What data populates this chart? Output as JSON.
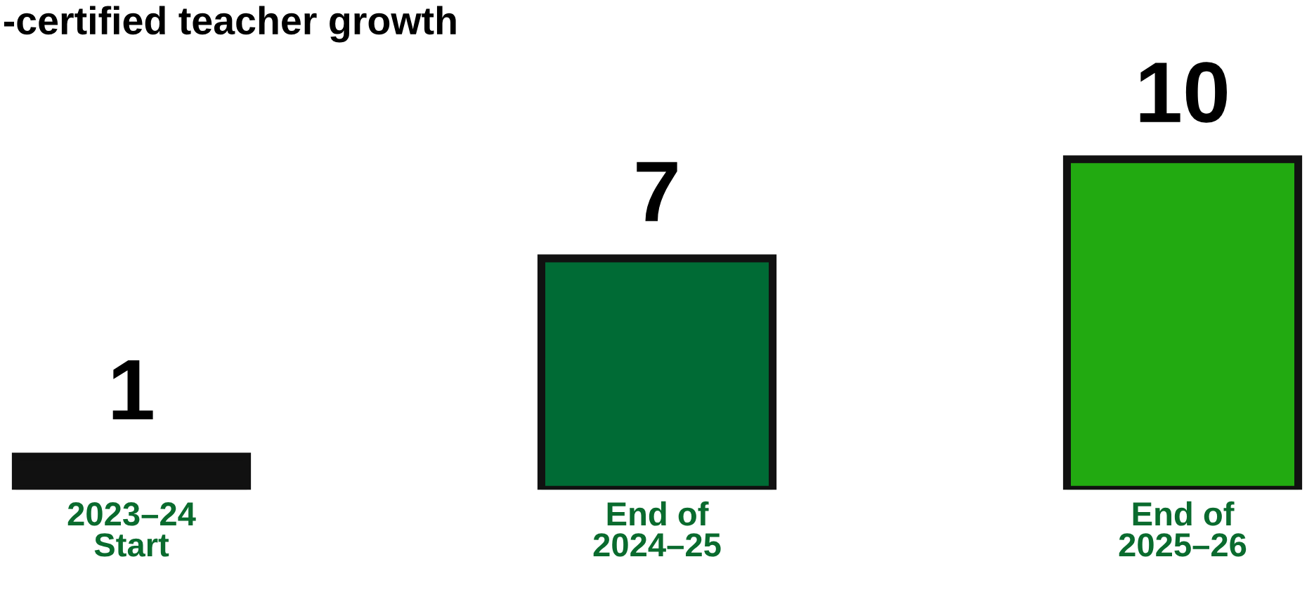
{
  "chart_data": {
    "type": "bar",
    "title": "-certified teacher growth",
    "categories": [
      "2023–24\nStart",
      "End of\n2024–25",
      "End of\n2025–26"
    ],
    "values": [
      1,
      7,
      10
    ],
    "colors": [
      "#111111",
      "#006b35",
      "#22aa11"
    ],
    "data_labels": true,
    "grid": false,
    "legend": false
  }
}
